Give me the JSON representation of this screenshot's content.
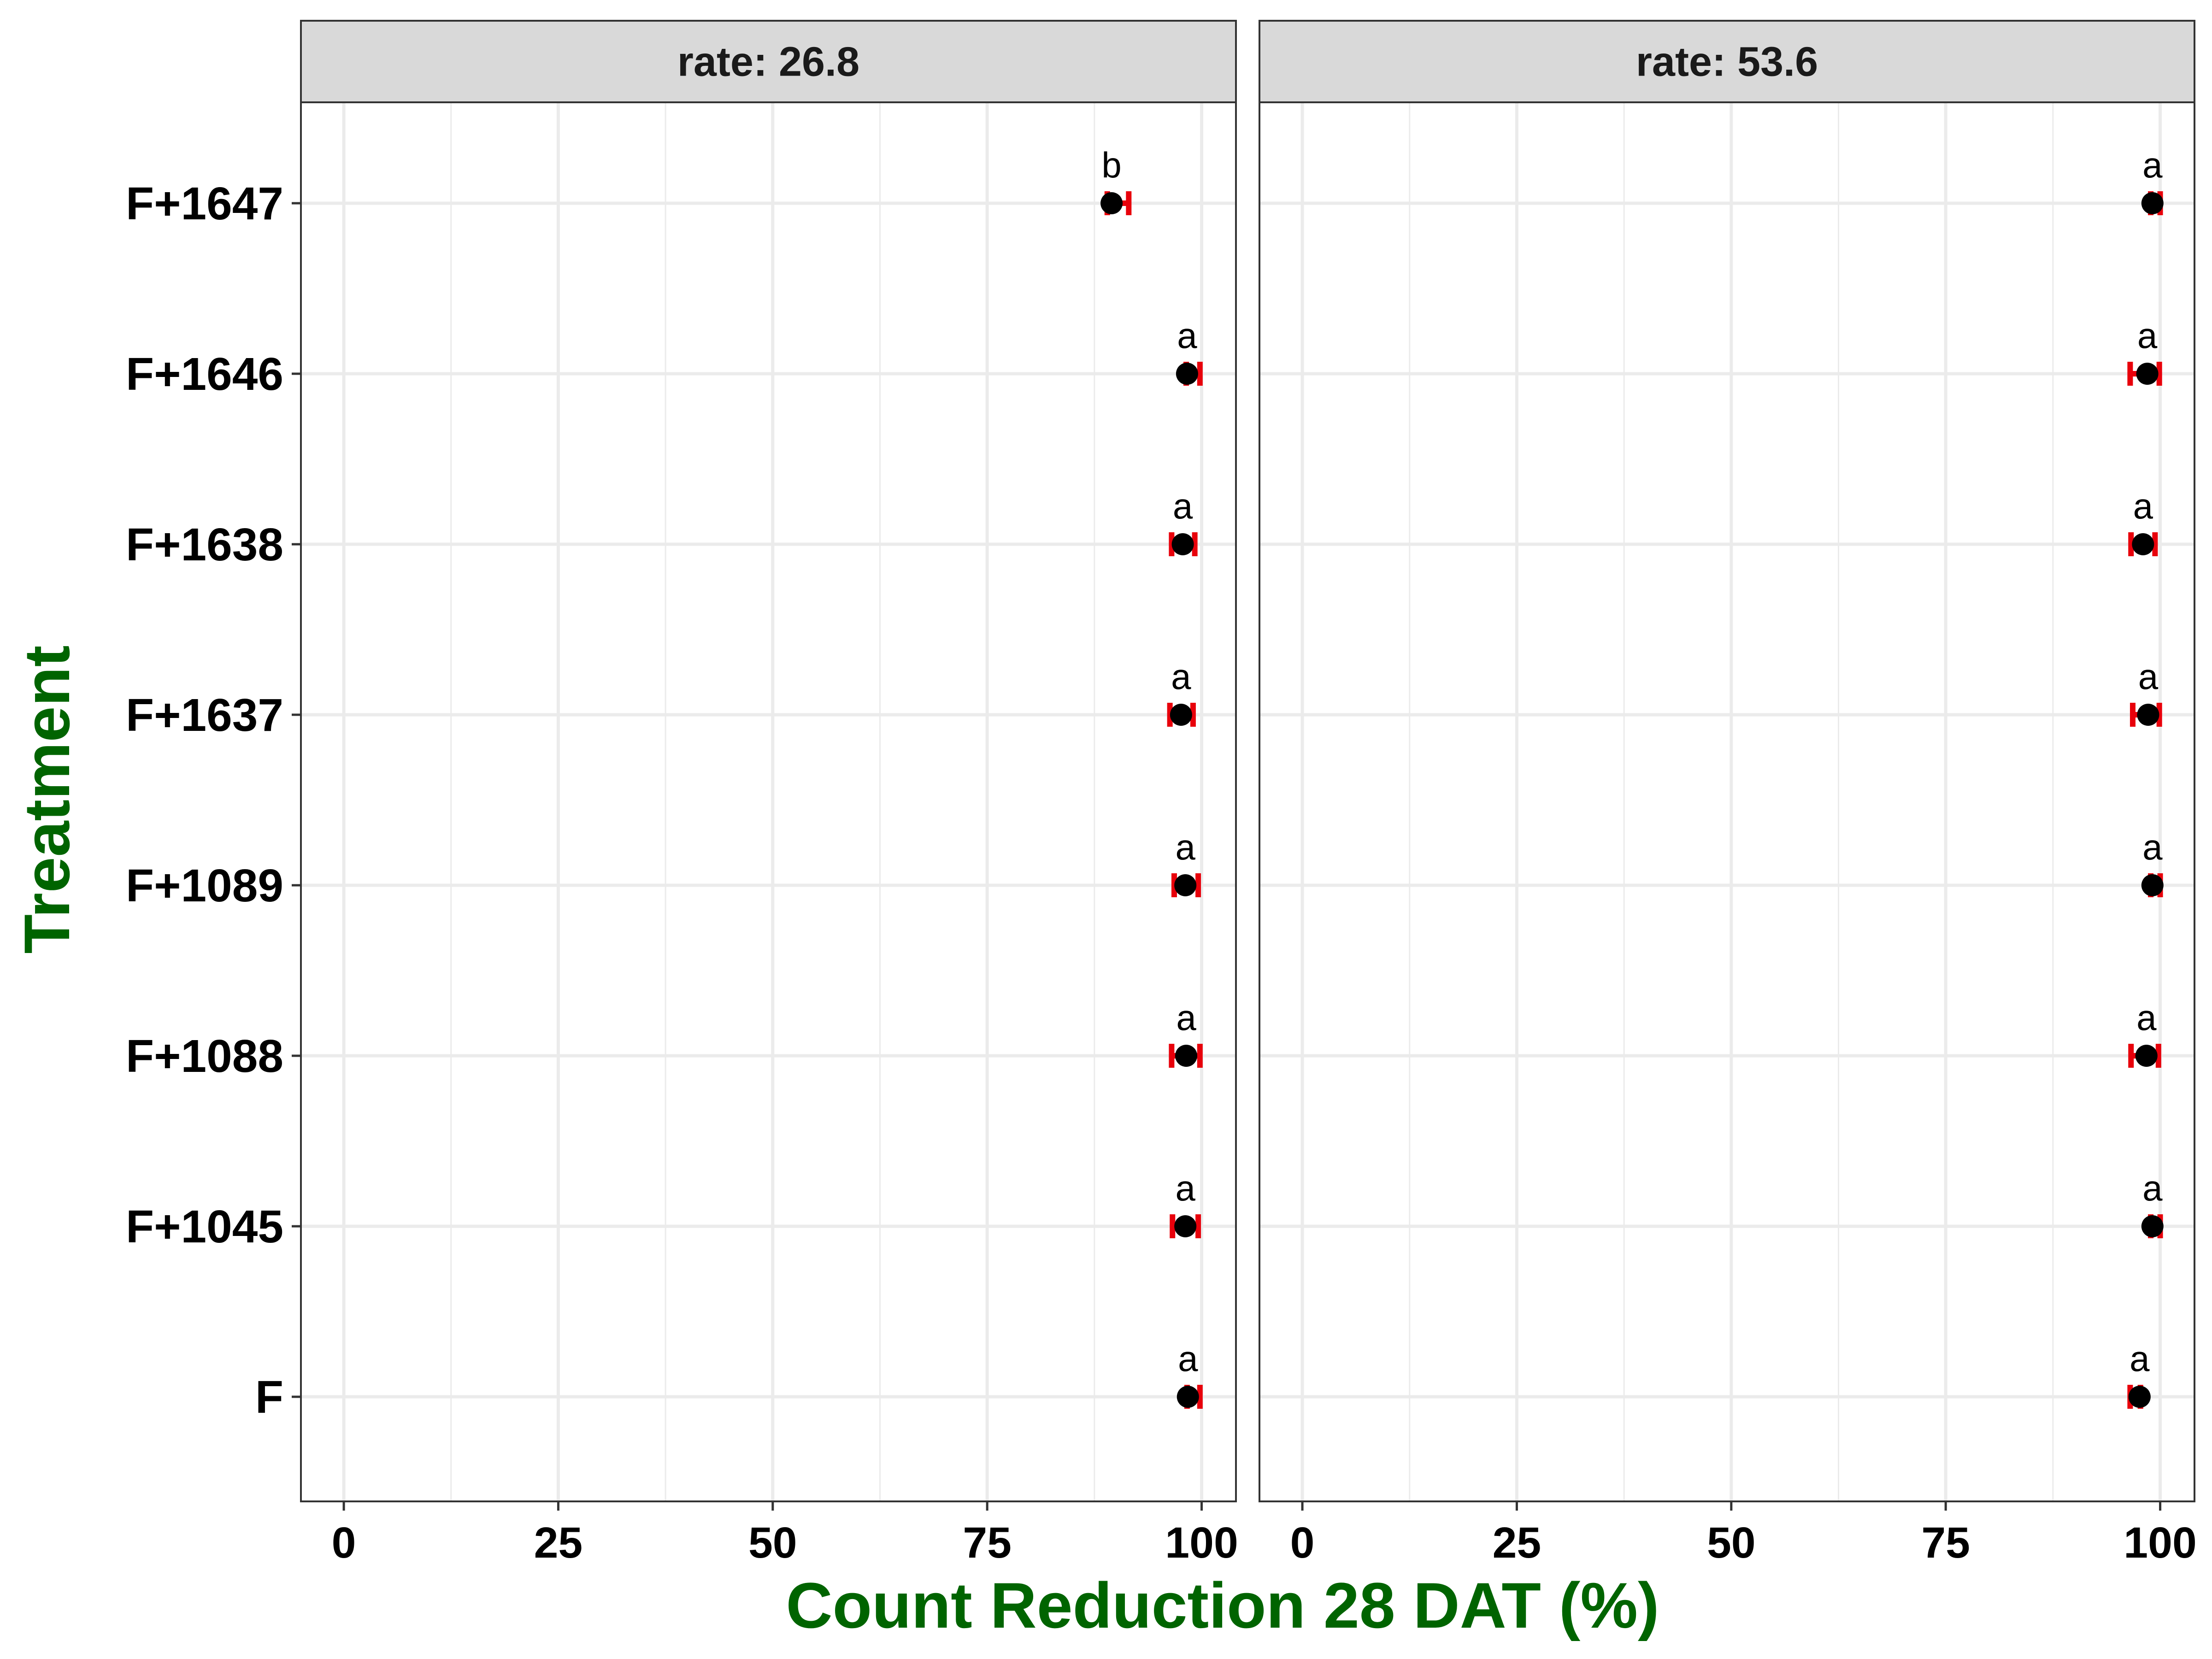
{
  "chart_data": {
    "type": "scatter",
    "xlabel": "Count Reduction 28 DAT (%)",
    "ylabel": "Treatment",
    "xlim": [
      -5,
      104
    ],
    "x_ticks": [
      "0",
      "25",
      "50",
      "75",
      "100"
    ],
    "x_tick_values": [
      0,
      25,
      50,
      75,
      100
    ],
    "categories": [
      "F+1647",
      "F+1646",
      "F+1638",
      "F+1637",
      "F+1089",
      "F+1088",
      "F+1045",
      "F"
    ],
    "grid": true,
    "colors": {
      "title": "#006400",
      "error_bar": "#e8000b",
      "point": "#000000",
      "strip_fill": "#d9d9d9",
      "grid": "#ebebeb",
      "panel_border": "#333333"
    },
    "panels": [
      {
        "strip_label": "rate: 26.8",
        "points": [
          {
            "treatment": "F+1647",
            "mean": 89.5,
            "lower": 89.0,
            "upper": 91.5,
            "group": "b"
          },
          {
            "treatment": "F+1646",
            "mean": 98.3,
            "lower": 98.2,
            "upper": 99.8,
            "group": "a"
          },
          {
            "treatment": "F+1638",
            "mean": 97.8,
            "lower": 96.5,
            "upper": 99.2,
            "group": "a"
          },
          {
            "treatment": "F+1637",
            "mean": 97.6,
            "lower": 96.3,
            "upper": 99.0,
            "group": "a"
          },
          {
            "treatment": "F+1089",
            "mean": 98.1,
            "lower": 96.8,
            "upper": 99.6,
            "group": "a"
          },
          {
            "treatment": "F+1088",
            "mean": 98.2,
            "lower": 96.5,
            "upper": 99.8,
            "group": "a"
          },
          {
            "treatment": "F+1045",
            "mean": 98.1,
            "lower": 96.6,
            "upper": 99.6,
            "group": "a"
          },
          {
            "treatment": "F",
            "mean": 98.4,
            "lower": 98.3,
            "upper": 99.8,
            "group": "a"
          }
        ]
      },
      {
        "strip_label": "rate: 53.6",
        "points": [
          {
            "treatment": "F+1647",
            "mean": 99.1,
            "lower": 98.9,
            "upper": 100.0,
            "group": "a"
          },
          {
            "treatment": "F+1646",
            "mean": 98.5,
            "lower": 96.5,
            "upper": 99.9,
            "group": "a"
          },
          {
            "treatment": "F+1638",
            "mean": 98.0,
            "lower": 96.6,
            "upper": 99.4,
            "group": "a"
          },
          {
            "treatment": "F+1637",
            "mean": 98.6,
            "lower": 96.8,
            "upper": 99.9,
            "group": "a"
          },
          {
            "treatment": "F+1089",
            "mean": 99.1,
            "lower": 98.9,
            "upper": 100.0,
            "group": "a"
          },
          {
            "treatment": "F+1088",
            "mean": 98.4,
            "lower": 96.6,
            "upper": 99.8,
            "group": "a"
          },
          {
            "treatment": "F+1045",
            "mean": 99.1,
            "lower": 98.9,
            "upper": 100.0,
            "group": "a"
          },
          {
            "treatment": "F",
            "mean": 97.6,
            "lower": 96.5,
            "upper": 97.7,
            "group": "a"
          }
        ]
      }
    ]
  }
}
